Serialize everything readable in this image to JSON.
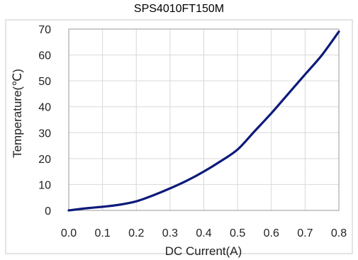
{
  "chart_data": {
    "type": "line",
    "title": "SPS4010FT150M",
    "xlabel": "DC Current(A)",
    "ylabel": "Temperature(℃)",
    "xlim": [
      0.0,
      0.8
    ],
    "ylim": [
      0,
      70
    ],
    "x_ticks": [
      "0.0",
      "0.1",
      "0.2",
      "0.3",
      "0.4",
      "0.5",
      "0.6",
      "0.7",
      "0.8"
    ],
    "y_ticks": [
      "0",
      "10",
      "20",
      "30",
      "40",
      "50",
      "60",
      "70"
    ],
    "grid": true,
    "colors": {
      "line": "#0d1a7a",
      "grid": "#d9d9d9",
      "frame": "#999999"
    },
    "series": [
      {
        "x": [
          0.0,
          0.05,
          0.1,
          0.15,
          0.2,
          0.25,
          0.3,
          0.35,
          0.4,
          0.45,
          0.5,
          0.55,
          0.6,
          0.65,
          0.7,
          0.75,
          0.8
        ],
        "values": [
          0.0,
          0.8,
          1.4,
          2.2,
          3.5,
          5.8,
          8.5,
          11.5,
          15.0,
          19.0,
          23.5,
          30.5,
          37.5,
          45.0,
          52.5,
          60.0,
          69.0
        ]
      }
    ]
  }
}
